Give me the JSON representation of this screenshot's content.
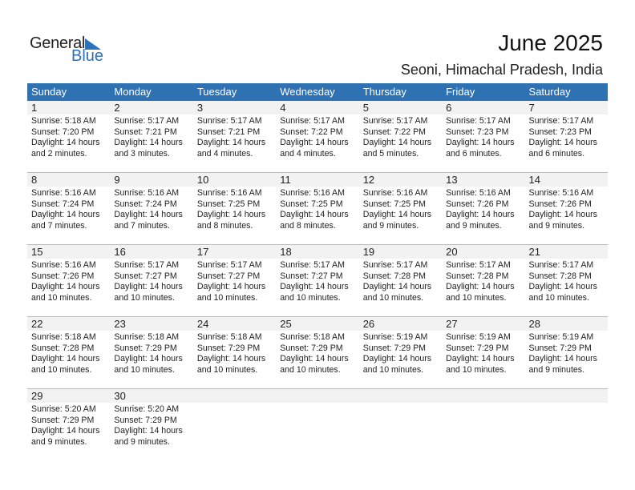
{
  "logo": {
    "general": "General",
    "blue": "Blue"
  },
  "header": {
    "title": "June 2025",
    "location": "Seoni, Himachal Pradesh, India"
  },
  "colors": {
    "accent": "#2e72b3",
    "date_band": "#f2f2f2"
  },
  "weekdays": [
    "Sunday",
    "Monday",
    "Tuesday",
    "Wednesday",
    "Thursday",
    "Friday",
    "Saturday"
  ],
  "weeks": [
    [
      {
        "day": "1",
        "sunrise": "Sunrise: 5:18 AM",
        "sunset": "Sunset: 7:20 PM",
        "daylight1": "Daylight: 14 hours",
        "daylight2": "and 2 minutes."
      },
      {
        "day": "2",
        "sunrise": "Sunrise: 5:17 AM",
        "sunset": "Sunset: 7:21 PM",
        "daylight1": "Daylight: 14 hours",
        "daylight2": "and 3 minutes."
      },
      {
        "day": "3",
        "sunrise": "Sunrise: 5:17 AM",
        "sunset": "Sunset: 7:21 PM",
        "daylight1": "Daylight: 14 hours",
        "daylight2": "and 4 minutes."
      },
      {
        "day": "4",
        "sunrise": "Sunrise: 5:17 AM",
        "sunset": "Sunset: 7:22 PM",
        "daylight1": "Daylight: 14 hours",
        "daylight2": "and 4 minutes."
      },
      {
        "day": "5",
        "sunrise": "Sunrise: 5:17 AM",
        "sunset": "Sunset: 7:22 PM",
        "daylight1": "Daylight: 14 hours",
        "daylight2": "and 5 minutes."
      },
      {
        "day": "6",
        "sunrise": "Sunrise: 5:17 AM",
        "sunset": "Sunset: 7:23 PM",
        "daylight1": "Daylight: 14 hours",
        "daylight2": "and 6 minutes."
      },
      {
        "day": "7",
        "sunrise": "Sunrise: 5:17 AM",
        "sunset": "Sunset: 7:23 PM",
        "daylight1": "Daylight: 14 hours",
        "daylight2": "and 6 minutes."
      }
    ],
    [
      {
        "day": "8",
        "sunrise": "Sunrise: 5:16 AM",
        "sunset": "Sunset: 7:24 PM",
        "daylight1": "Daylight: 14 hours",
        "daylight2": "and 7 minutes."
      },
      {
        "day": "9",
        "sunrise": "Sunrise: 5:16 AM",
        "sunset": "Sunset: 7:24 PM",
        "daylight1": "Daylight: 14 hours",
        "daylight2": "and 7 minutes."
      },
      {
        "day": "10",
        "sunrise": "Sunrise: 5:16 AM",
        "sunset": "Sunset: 7:25 PM",
        "daylight1": "Daylight: 14 hours",
        "daylight2": "and 8 minutes."
      },
      {
        "day": "11",
        "sunrise": "Sunrise: 5:16 AM",
        "sunset": "Sunset: 7:25 PM",
        "daylight1": "Daylight: 14 hours",
        "daylight2": "and 8 minutes."
      },
      {
        "day": "12",
        "sunrise": "Sunrise: 5:16 AM",
        "sunset": "Sunset: 7:25 PM",
        "daylight1": "Daylight: 14 hours",
        "daylight2": "and 9 minutes."
      },
      {
        "day": "13",
        "sunrise": "Sunrise: 5:16 AM",
        "sunset": "Sunset: 7:26 PM",
        "daylight1": "Daylight: 14 hours",
        "daylight2": "and 9 minutes."
      },
      {
        "day": "14",
        "sunrise": "Sunrise: 5:16 AM",
        "sunset": "Sunset: 7:26 PM",
        "daylight1": "Daylight: 14 hours",
        "daylight2": "and 9 minutes."
      }
    ],
    [
      {
        "day": "15",
        "sunrise": "Sunrise: 5:16 AM",
        "sunset": "Sunset: 7:26 PM",
        "daylight1": "Daylight: 14 hours",
        "daylight2": "and 10 minutes."
      },
      {
        "day": "16",
        "sunrise": "Sunrise: 5:17 AM",
        "sunset": "Sunset: 7:27 PM",
        "daylight1": "Daylight: 14 hours",
        "daylight2": "and 10 minutes."
      },
      {
        "day": "17",
        "sunrise": "Sunrise: 5:17 AM",
        "sunset": "Sunset: 7:27 PM",
        "daylight1": "Daylight: 14 hours",
        "daylight2": "and 10 minutes."
      },
      {
        "day": "18",
        "sunrise": "Sunrise: 5:17 AM",
        "sunset": "Sunset: 7:27 PM",
        "daylight1": "Daylight: 14 hours",
        "daylight2": "and 10 minutes."
      },
      {
        "day": "19",
        "sunrise": "Sunrise: 5:17 AM",
        "sunset": "Sunset: 7:28 PM",
        "daylight1": "Daylight: 14 hours",
        "daylight2": "and 10 minutes."
      },
      {
        "day": "20",
        "sunrise": "Sunrise: 5:17 AM",
        "sunset": "Sunset: 7:28 PM",
        "daylight1": "Daylight: 14 hours",
        "daylight2": "and 10 minutes."
      },
      {
        "day": "21",
        "sunrise": "Sunrise: 5:17 AM",
        "sunset": "Sunset: 7:28 PM",
        "daylight1": "Daylight: 14 hours",
        "daylight2": "and 10 minutes."
      }
    ],
    [
      {
        "day": "22",
        "sunrise": "Sunrise: 5:18 AM",
        "sunset": "Sunset: 7:28 PM",
        "daylight1": "Daylight: 14 hours",
        "daylight2": "and 10 minutes."
      },
      {
        "day": "23",
        "sunrise": "Sunrise: 5:18 AM",
        "sunset": "Sunset: 7:29 PM",
        "daylight1": "Daylight: 14 hours",
        "daylight2": "and 10 minutes."
      },
      {
        "day": "24",
        "sunrise": "Sunrise: 5:18 AM",
        "sunset": "Sunset: 7:29 PM",
        "daylight1": "Daylight: 14 hours",
        "daylight2": "and 10 minutes."
      },
      {
        "day": "25",
        "sunrise": "Sunrise: 5:18 AM",
        "sunset": "Sunset: 7:29 PM",
        "daylight1": "Daylight: 14 hours",
        "daylight2": "and 10 minutes."
      },
      {
        "day": "26",
        "sunrise": "Sunrise: 5:19 AM",
        "sunset": "Sunset: 7:29 PM",
        "daylight1": "Daylight: 14 hours",
        "daylight2": "and 10 minutes."
      },
      {
        "day": "27",
        "sunrise": "Sunrise: 5:19 AM",
        "sunset": "Sunset: 7:29 PM",
        "daylight1": "Daylight: 14 hours",
        "daylight2": "and 10 minutes."
      },
      {
        "day": "28",
        "sunrise": "Sunrise: 5:19 AM",
        "sunset": "Sunset: 7:29 PM",
        "daylight1": "Daylight: 14 hours",
        "daylight2": "and 9 minutes."
      }
    ],
    [
      {
        "day": "29",
        "sunrise": "Sunrise: 5:20 AM",
        "sunset": "Sunset: 7:29 PM",
        "daylight1": "Daylight: 14 hours",
        "daylight2": "and 9 minutes."
      },
      {
        "day": "30",
        "sunrise": "Sunrise: 5:20 AM",
        "sunset": "Sunset: 7:29 PM",
        "daylight1": "Daylight: 14 hours",
        "daylight2": "and 9 minutes."
      },
      null,
      null,
      null,
      null,
      null
    ]
  ]
}
